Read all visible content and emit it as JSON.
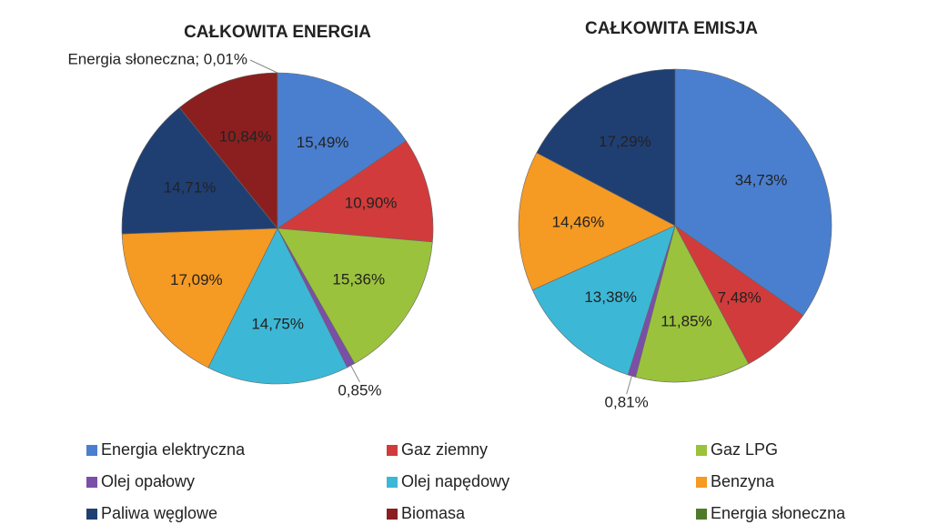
{
  "chart_data": [
    {
      "type": "pie",
      "title": "CAŁKOWITA ENERGIA",
      "categories": [
        "Energia elektryczna",
        "Gaz ziemny",
        "Gaz LPG",
        "Olej opałowy",
        "Olej napędowy",
        "Benzyna",
        "Paliwa węglowe",
        "Biomasa",
        "Energia słoneczna"
      ],
      "values": [
        15.49,
        10.9,
        15.36,
        0.85,
        14.75,
        17.09,
        14.71,
        10.84,
        0.01
      ],
      "value_labels": [
        "15,49%",
        "10,90%",
        "15,36%",
        "0,85%",
        "14,75%",
        "17,09%",
        "14,71%",
        "10,84%",
        "Energia słoneczna; 0,01%"
      ],
      "colors": [
        "#4a7fd0",
        "#d23b3b",
        "#9bc23c",
        "#7b4fa8",
        "#3cb8d6",
        "#f59a23",
        "#1f3f73",
        "#8b1f1f",
        "#4e7a2a"
      ]
    },
    {
      "type": "pie",
      "title": "CAŁKOWITA EMISJA",
      "categories": [
        "Energia elektryczna",
        "Gaz ziemny",
        "Gaz LPG",
        "Olej opałowy",
        "Olej napędowy",
        "Benzyna",
        "Paliwa węglowe"
      ],
      "values": [
        34.73,
        7.48,
        11.85,
        0.81,
        13.38,
        14.46,
        17.29
      ],
      "value_labels": [
        "34,73%",
        "7,48%",
        "11,85%",
        "0,81%",
        "13,38%",
        "14,46%",
        "17,29%"
      ],
      "colors": [
        "#4a7fd0",
        "#d23b3b",
        "#9bc23c",
        "#7b4fa8",
        "#3cb8d6",
        "#f59a23",
        "#1f3f73"
      ]
    }
  ]
}
